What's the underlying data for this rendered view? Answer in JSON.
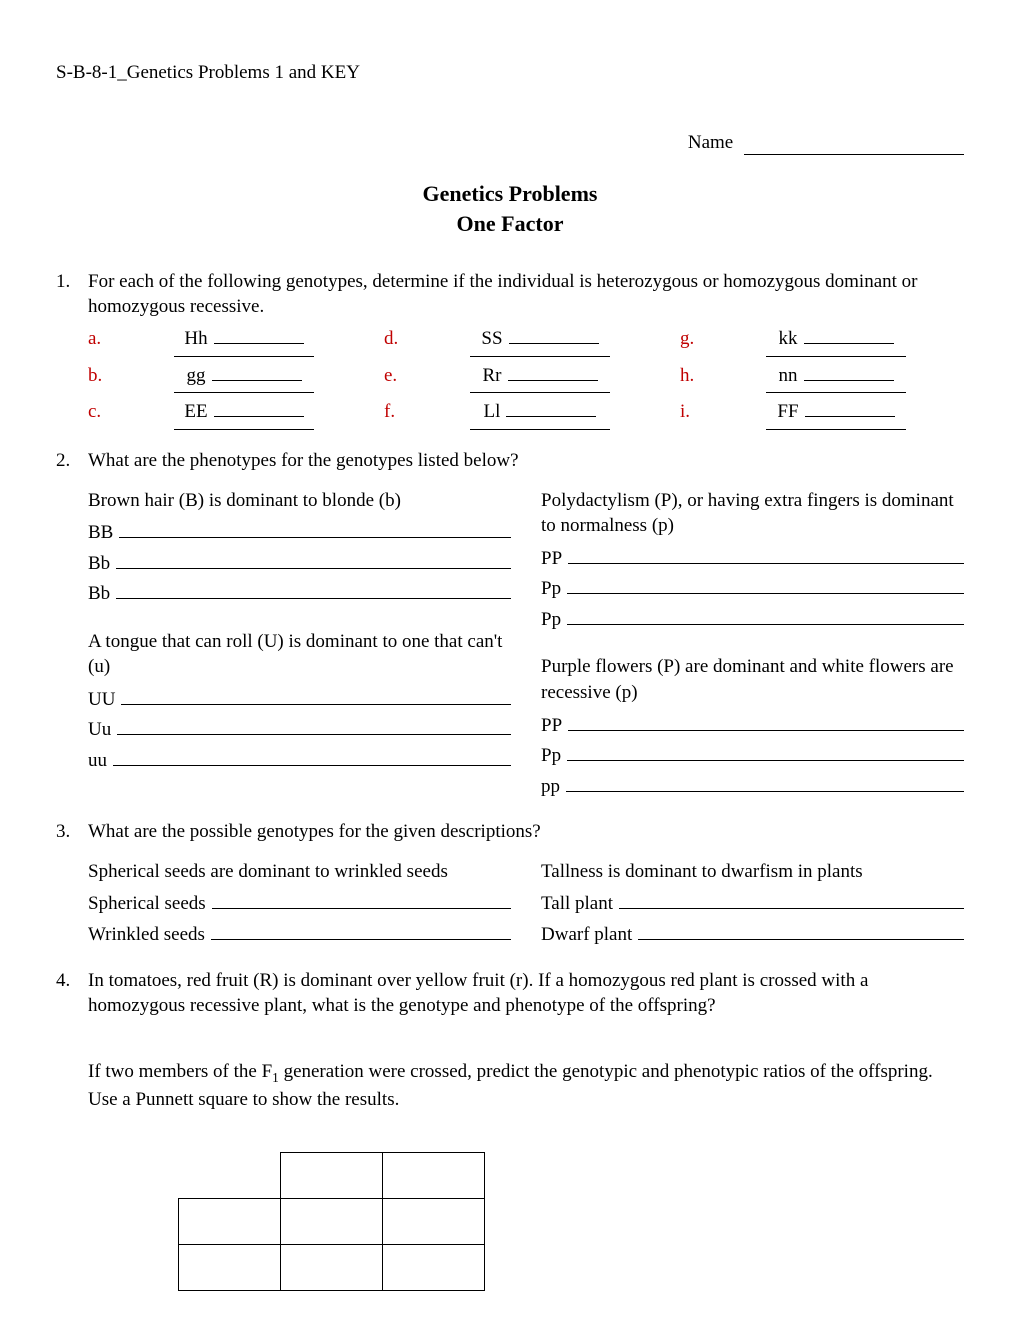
{
  "header_label": "S-B-8-1_Genetics Problems 1 and KEY",
  "name_label": "Name",
  "title": "Genetics Problems",
  "subtitle": "One Factor",
  "q1": {
    "num": "1.",
    "text": "For each of the following genotypes, determine if the individual is heterozygous or homozygous dominant or homozygous recessive.",
    "items": [
      {
        "letter": "a.",
        "geno": "Hh"
      },
      {
        "letter": "d.",
        "geno": "SS"
      },
      {
        "letter": "g.",
        "geno": "kk"
      },
      {
        "letter": "b.",
        "geno": "gg"
      },
      {
        "letter": "e.",
        "geno": "Rr"
      },
      {
        "letter": "h.",
        "geno": "nn"
      },
      {
        "letter": "c.",
        "geno": "EE"
      },
      {
        "letter": "f.",
        "geno": "Ll"
      },
      {
        "letter": "i.",
        "geno": "FF"
      }
    ]
  },
  "q2": {
    "num": "2.",
    "text": "What are the phenotypes for the genotypes listed below?",
    "left": [
      {
        "desc": "Brown hair (B) is dominant to blonde (b)",
        "genos": [
          "BB",
          "Bb",
          "Bb"
        ]
      },
      {
        "desc": "A tongue that can roll (U) is dominant to one that can't (u)",
        "genos": [
          "UU",
          "Uu",
          "uu"
        ]
      }
    ],
    "right": [
      {
        "desc": "Polydactylism (P), or having extra fingers is dominant to normalness (p)",
        "genos": [
          "PP",
          "Pp",
          "Pp"
        ]
      },
      {
        "desc": "Purple flowers (P) are dominant and white flowers are recessive (p)",
        "genos": [
          "PP",
          "Pp",
          "pp"
        ]
      }
    ]
  },
  "q3": {
    "num": "3.",
    "text": "What are the possible genotypes for the given descriptions?",
    "left": {
      "desc": "Spherical seeds are dominant to wrinkled seeds",
      "labels": [
        "Spherical seeds",
        "Wrinkled seeds"
      ]
    },
    "right": {
      "desc": "Tallness is dominant to dwarfism in plants",
      "labels": [
        "Tall plant",
        "Dwarf plant"
      ]
    }
  },
  "q4": {
    "num": "4.",
    "para1": "In tomatoes, red fruit (R) is dominant over yellow fruit (r). If a homozygous red plant is crossed with a homozygous recessive plant, what is the genotype and phenotype of the offspring?",
    "para2_pre": "If two members of the F",
    "para2_sub": "1",
    "para2_post": " generation were crossed, predict the genotypic and phenotypic ratios of the offspring. Use a Punnett square to show the results."
  },
  "accent_color": "#c00000"
}
